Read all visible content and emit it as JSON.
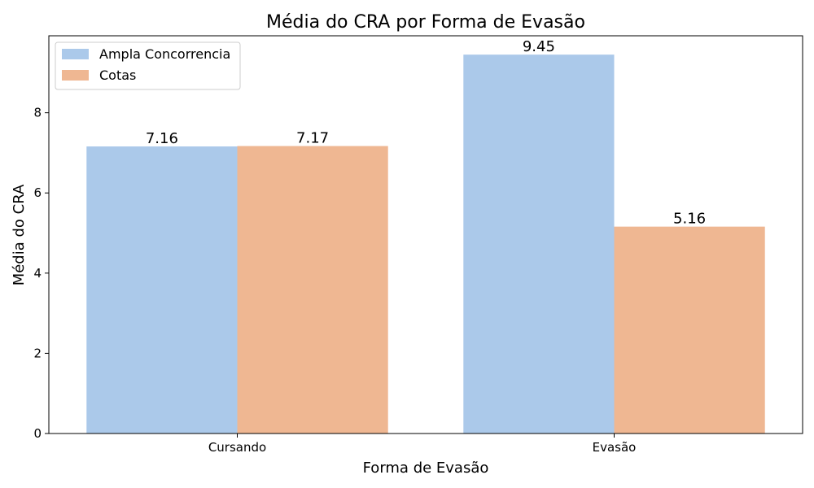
{
  "chart_data": {
    "type": "bar",
    "title": "Média do CRA por Forma de Evasão",
    "xlabel": "Forma de Evasão",
    "ylabel": "Média do CRA",
    "categories": [
      "Cursando",
      "Evasão"
    ],
    "series": [
      {
        "name": "Ampla Concorrencia",
        "values": [
          7.16,
          9.45
        ],
        "labels": [
          "7.16",
          "9.45"
        ],
        "color": "#abc9ea"
      },
      {
        "name": "Cotas",
        "values": [
          7.17,
          5.16
        ],
        "labels": [
          "7.17",
          "5.16"
        ],
        "color": "#efb792"
      }
    ],
    "ylim": [
      0,
      9.92
    ],
    "yticks": [
      0,
      2,
      4,
      6,
      8
    ],
    "ytick_labels": [
      "0",
      "2",
      "4",
      "6",
      "8"
    ],
    "grid": false,
    "legend_position": "top-left"
  }
}
